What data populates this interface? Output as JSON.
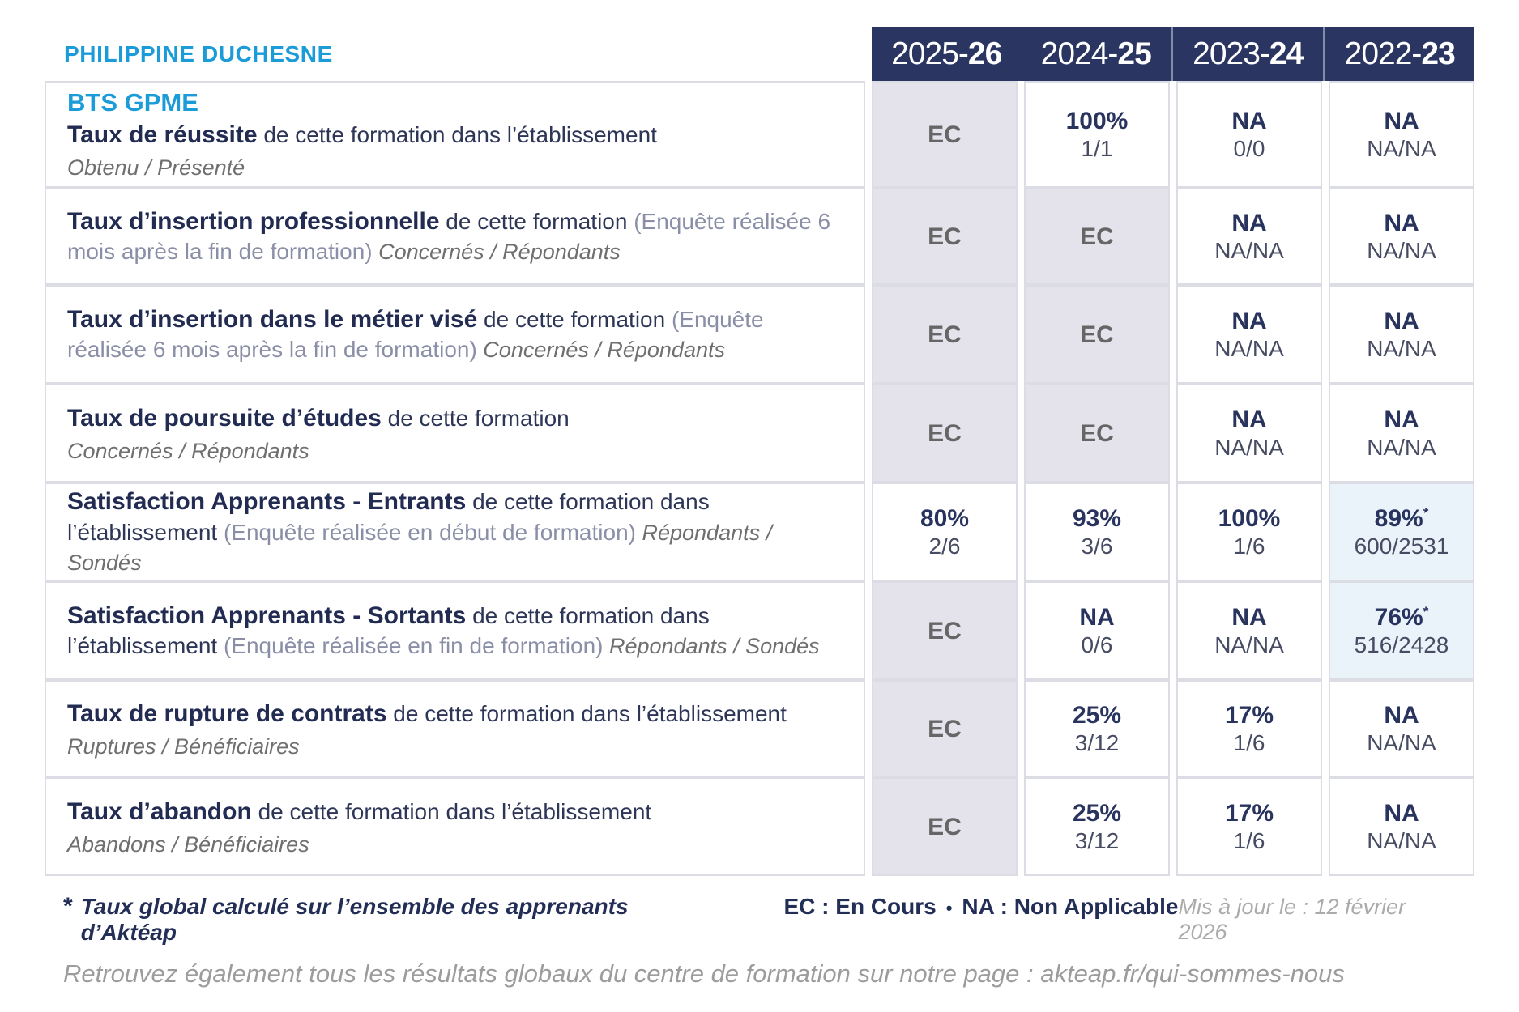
{
  "brand": "PHILIPPINE DUCHESNE",
  "header_years": [
    {
      "pre": "2025-",
      "suf": "26"
    },
    {
      "pre": "2024-",
      "suf": "25"
    },
    {
      "pre": "2023-",
      "suf": "24"
    },
    {
      "pre": "2022-",
      "suf": "23"
    }
  ],
  "rows": [
    {
      "heading": "BTS GPME",
      "title": "Taux de réussite",
      "text": " de cette formation dans l’établissement",
      "paren": "",
      "isub": "",
      "bsub": "Obtenu / Présenté",
      "cells": [
        {
          "value": "EC",
          "sub": ""
        },
        {
          "value": "100%",
          "sub": "1/1"
        },
        {
          "value": "NA",
          "sub": "0/0"
        },
        {
          "value": "NA",
          "sub": "NA/NA"
        }
      ]
    },
    {
      "heading": "",
      "title": "Taux d’insertion professionnelle",
      "text": " de cette formation ",
      "paren": "(Enquête réalisée 6 mois après la fin de formation)",
      "isub": " Concernés / Répondants",
      "bsub": "",
      "cells": [
        {
          "value": "EC",
          "sub": ""
        },
        {
          "value": "EC",
          "sub": ""
        },
        {
          "value": "NA",
          "sub": "NA/NA"
        },
        {
          "value": "NA",
          "sub": "NA/NA"
        }
      ]
    },
    {
      "heading": "",
      "title": "Taux d’insertion dans le métier visé",
      "text": " de cette formation ",
      "paren": "(Enquête réalisée 6 mois après la fin de formation)",
      "isub": " Concernés / Répondants",
      "bsub": "",
      "cells": [
        {
          "value": "EC",
          "sub": ""
        },
        {
          "value": "EC",
          "sub": ""
        },
        {
          "value": "NA",
          "sub": "NA/NA"
        },
        {
          "value": "NA",
          "sub": "NA/NA"
        }
      ]
    },
    {
      "heading": "",
      "title": "Taux de poursuite d’études",
      "text": " de cette formation",
      "paren": "",
      "isub": "",
      "bsub": "Concernés / Répondants",
      "cells": [
        {
          "value": "EC",
          "sub": ""
        },
        {
          "value": "EC",
          "sub": ""
        },
        {
          "value": "NA",
          "sub": "NA/NA"
        },
        {
          "value": "NA",
          "sub": "NA/NA"
        }
      ]
    },
    {
      "heading": "",
      "title": "Satisfaction Apprenants - Entrants",
      "text": " de cette formation dans l’établissement ",
      "paren": "(Enquête réalisée en début de formation)",
      "isub": " Répondants / Sondés",
      "bsub": "",
      "cells": [
        {
          "value": "80%",
          "sub": "2/6"
        },
        {
          "value": "93%",
          "sub": "3/6"
        },
        {
          "value": "100%",
          "sub": "1/6"
        },
        {
          "value": "89%",
          "sub": "600/2531",
          "star": "*"
        }
      ]
    },
    {
      "heading": "",
      "title": "Satisfaction Apprenants - Sortants",
      "text": " de cette formation dans l’établissement ",
      "paren": "(Enquête réalisée en fin de formation)",
      "isub": " Répondants / Sondés",
      "bsub": "",
      "cells": [
        {
          "value": "EC",
          "sub": ""
        },
        {
          "value": "NA",
          "sub": "0/6"
        },
        {
          "value": "NA",
          "sub": "NA/NA"
        },
        {
          "value": "76%",
          "sub": "516/2428",
          "star": "*"
        }
      ]
    },
    {
      "heading": "",
      "title": "Taux de rupture de contrats",
      "text": " de cette formation dans l’établissement",
      "paren": "",
      "isub": "",
      "bsub": "Ruptures / Bénéficiaires",
      "cells": [
        {
          "value": "EC",
          "sub": ""
        },
        {
          "value": "25%",
          "sub": "3/12"
        },
        {
          "value": "17%",
          "sub": "1/6"
        },
        {
          "value": "NA",
          "sub": "NA/NA"
        }
      ]
    },
    {
      "heading": "",
      "title": "Taux d’abandon",
      "text": " de cette formation dans l’établissement",
      "paren": "",
      "isub": "",
      "bsub": "Abandons / Bénéficiaires",
      "cells": [
        {
          "value": "EC",
          "sub": ""
        },
        {
          "value": "25%",
          "sub": "3/12"
        },
        {
          "value": "17%",
          "sub": "1/6"
        },
        {
          "value": "NA",
          "sub": "NA/NA"
        }
      ]
    }
  ],
  "footer": {
    "star": "*",
    "note": "Taux global calculé sur l’ensemble des apprenants d’Aktéap",
    "legend_ec": "EC : En Cours",
    "legend_sep": "•",
    "legend_na": "NA : Non Applicable",
    "updated": "Mis à jour le : 12 février 2026"
  },
  "bottom": {
    "text": "Retrouvez également tous les résultats globaux du centre de formation sur notre page : ",
    "link": "akteap.fr/qui-sommes-nous"
  },
  "colors": {
    "accent_blue": "#1B9CD9",
    "navy": "#2A3561",
    "ec_bg": "#E4E3EC",
    "highlight_bg": "#EAF3FA"
  }
}
